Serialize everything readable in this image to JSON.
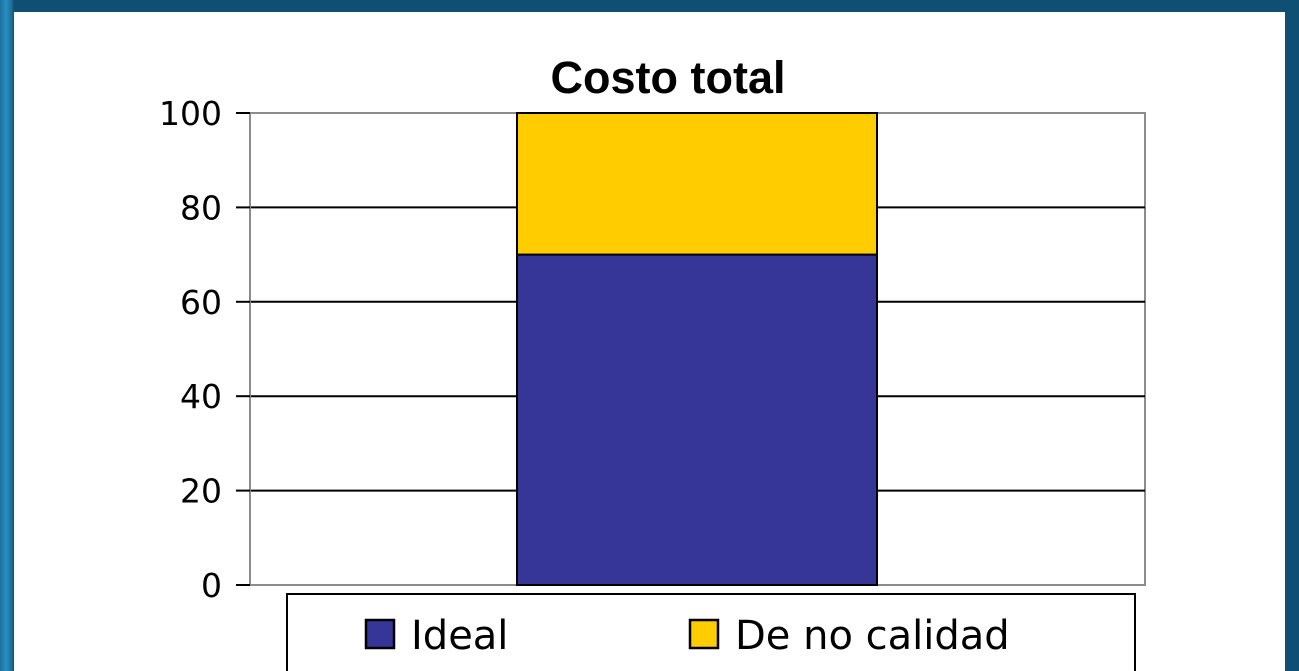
{
  "chart_data": {
    "type": "bar",
    "stacked": true,
    "title": "Costo total",
    "xlabel": "",
    "ylabel": "",
    "categories": [
      ""
    ],
    "series": [
      {
        "name": "Ideal",
        "values": [
          70
        ],
        "color": "#363699"
      },
      {
        "name": "De no calidad",
        "values": [
          30
        ],
        "color": "#ffcc00"
      }
    ],
    "ylim": [
      0,
      100
    ],
    "yticks": [
      "0",
      "20",
      "40",
      "60",
      "80",
      "100"
    ],
    "grid": true,
    "legend_position": "bottom"
  }
}
